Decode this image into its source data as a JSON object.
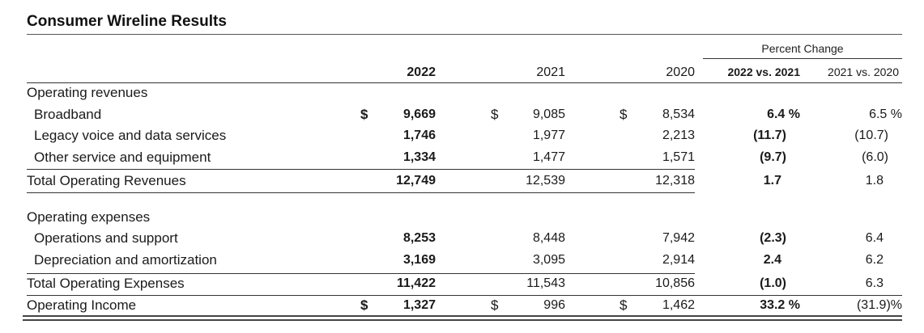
{
  "title": "Consumer Wireline Results",
  "percent_change_title": "Percent Change",
  "headers": {
    "y2022": "2022",
    "y2021": "2021",
    "y2020": "2020",
    "pc1": "2022 vs. 2021",
    "pc2": "2021 vs. 2020"
  },
  "dollar_sign": "$",
  "sections": {
    "revenues_label": "Operating revenues",
    "expenses_label": "Operating expenses"
  },
  "rows": [
    {
      "label": "Broadband",
      "v2022": "9,669",
      "v2021": "9,085",
      "v2020": "8,534",
      "pc1": "6.4 %",
      "pc2": "6.5 %"
    },
    {
      "label": "Legacy voice and data services",
      "v2022": "1,746",
      "v2021": "1,977",
      "v2020": "2,213",
      "pc1": "(11.7)",
      "pc2": "(10.7)"
    },
    {
      "label": "Other service and equipment",
      "v2022": "1,334",
      "v2021": "1,477",
      "v2020": "1,571",
      "pc1": "(9.7)",
      "pc2": "(6.0)"
    },
    {
      "label": "Total Operating Revenues",
      "v2022": "12,749",
      "v2021": "12,539",
      "v2020": "12,318",
      "pc1": "1.7",
      "pc2": "1.8"
    },
    {
      "label": "Operations and support",
      "v2022": "8,253",
      "v2021": "8,448",
      "v2020": "7,942",
      "pc1": "(2.3)",
      "pc2": "6.4"
    },
    {
      "label": "Depreciation and amortization",
      "v2022": "3,169",
      "v2021": "3,095",
      "v2020": "2,914",
      "pc1": "2.4",
      "pc2": "6.2"
    },
    {
      "label": "Total Operating Expenses",
      "v2022": "11,422",
      "v2021": "11,543",
      "v2020": "10,856",
      "pc1": "(1.0)",
      "pc2": "6.3"
    },
    {
      "label": "Operating Income",
      "v2022": "1,327",
      "v2021": "996",
      "v2020": "1,462",
      "pc1": "33.2 %",
      "pc2": "(31.9)%"
    }
  ]
}
